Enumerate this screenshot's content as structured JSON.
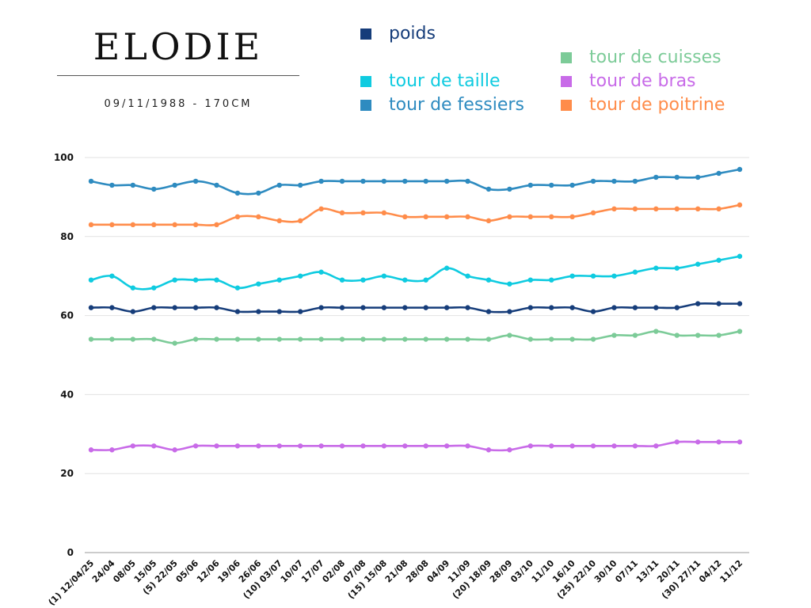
{
  "header": {
    "title": "ELODIE",
    "subtitle": "09/11/1988 - 170CM"
  },
  "legend": [
    {
      "key": "poids",
      "label": "poids",
      "color": "#163d7a"
    },
    {
      "key": "cuisses",
      "label": "tour de cuisses",
      "color": "#7ccb98"
    },
    {
      "key": "taille",
      "label": "tour de taille",
      "color": "#0fcbe0"
    },
    {
      "key": "bras",
      "label": "tour de bras",
      "color": "#c86be8"
    },
    {
      "key": "fessiers",
      "label": "tour de fessiers",
      "color": "#2e8bc0"
    },
    {
      "key": "poitrine",
      "label": "tour de poitrine",
      "color": "#ff8c4a"
    }
  ],
  "chart_data": {
    "type": "line",
    "title": "ELODIE",
    "subtitle": "09/11/1988 - 170CM",
    "xlabel": "",
    "ylabel": "",
    "ylim": [
      0,
      100
    ],
    "yticks": [
      0,
      20,
      40,
      60,
      80,
      100
    ],
    "grid": true,
    "legend_position": "top-right",
    "x": [
      "(1) 12/04/25",
      "24/04",
      "08/05",
      "15/05",
      "(5) 22/05",
      "05/06",
      "12/06",
      "19/06",
      "26/06",
      "(10) 03/07",
      "10/07",
      "17/07",
      "02/08",
      "07/08",
      "(15) 15/08",
      "21/08",
      "28/08",
      "04/09",
      "11/09",
      "(20) 18/09",
      "28/09",
      "03/10",
      "11/10",
      "16/10",
      "(25) 22/10",
      "30/10",
      "07/11",
      "13/11",
      "20/11",
      "(30) 27/11",
      "04/12",
      "11/12"
    ],
    "series": [
      {
        "name": "tour de fessiers",
        "color": "#2e8bc0",
        "values": [
          94,
          93,
          93,
          92,
          93,
          94,
          93,
          91,
          91,
          93,
          93,
          94,
          94,
          94,
          94,
          94,
          94,
          94,
          94,
          92,
          92,
          93,
          93,
          93,
          94,
          94,
          94,
          95,
          95,
          95,
          96,
          97
        ]
      },
      {
        "name": "tour de poitrine",
        "color": "#ff8c4a",
        "values": [
          83,
          83,
          83,
          83,
          83,
          83,
          83,
          85,
          85,
          84,
          84,
          87,
          86,
          86,
          86,
          85,
          85,
          85,
          85,
          84,
          85,
          85,
          85,
          85,
          86,
          87,
          87,
          87,
          87,
          87,
          87,
          88
        ]
      },
      {
        "name": "tour de taille",
        "color": "#0fcbe0",
        "values": [
          69,
          70,
          67,
          67,
          69,
          69,
          69,
          67,
          68,
          69,
          70,
          71,
          69,
          69,
          70,
          69,
          69,
          72,
          70,
          69,
          68,
          69,
          69,
          70,
          70,
          70,
          71,
          72,
          72,
          73,
          74,
          75
        ]
      },
      {
        "name": "poids",
        "color": "#163d7a",
        "values": [
          62,
          62,
          61,
          62,
          62,
          62,
          62,
          61,
          61,
          61,
          61,
          62,
          62,
          62,
          62,
          62,
          62,
          62,
          62,
          61,
          61,
          62,
          62,
          62,
          61,
          62,
          62,
          62,
          62,
          63,
          63,
          63
        ]
      },
      {
        "name": "tour de cuisses",
        "color": "#7ccb98",
        "values": [
          54,
          54,
          54,
          54,
          53,
          54,
          54,
          54,
          54,
          54,
          54,
          54,
          54,
          54,
          54,
          54,
          54,
          54,
          54,
          54,
          55,
          54,
          54,
          54,
          54,
          55,
          55,
          56,
          55,
          55,
          55,
          56
        ]
      },
      {
        "name": "tour de bras",
        "color": "#c86be8",
        "values": [
          26,
          26,
          27,
          27,
          26,
          27,
          27,
          27,
          27,
          27,
          27,
          27,
          27,
          27,
          27,
          27,
          27,
          27,
          27,
          26,
          26,
          27,
          27,
          27,
          27,
          27,
          27,
          27,
          28,
          28,
          28,
          28
        ]
      }
    ]
  }
}
